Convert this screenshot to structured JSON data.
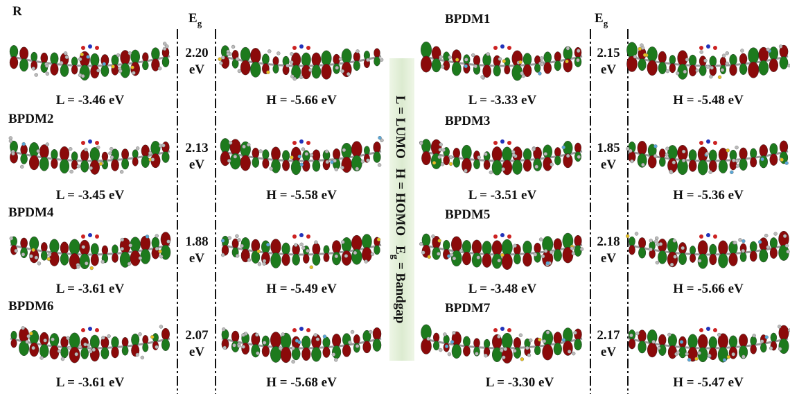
{
  "eg_header": {
    "main": "E",
    "sub": "g"
  },
  "legend": {
    "lumo": "L = LUMO",
    "homo": "H = HOMO",
    "bandgap": "= Bandgap"
  },
  "molecules": [
    {
      "name": "R",
      "lumo": "L = -3.46 eV",
      "homo": "H = -5.66 eV",
      "gap": "2.20",
      "gap_unit": "eV"
    },
    {
      "name": "BPDM1",
      "lumo": "L = -3.33 eV",
      "homo": "H = -5.48 eV",
      "gap": "2.15",
      "gap_unit": "eV"
    },
    {
      "name": "BPDM2",
      "lumo": "L = -3.45 eV",
      "homo": "H = -5.58 eV",
      "gap": "2.13",
      "gap_unit": "eV"
    },
    {
      "name": "BPDM3",
      "lumo": "L = -3.51 eV",
      "homo": "H = -5.36 eV",
      "gap": "1.85",
      "gap_unit": "eV"
    },
    {
      "name": "BPDM4",
      "lumo": "L = -3.61 eV",
      "homo": "H = -5.49 eV",
      "gap": "1.88",
      "gap_unit": "eV"
    },
    {
      "name": "BPDM5",
      "lumo": "L = -3.48 eV",
      "homo": "H = -5.66 eV",
      "gap": "2.18",
      "gap_unit": "eV"
    },
    {
      "name": "BPDM6",
      "lumo": "L = -3.61 eV",
      "homo": "H = -5.68 eV",
      "gap": "2.07",
      "gap_unit": "eV"
    },
    {
      "name": "BPDM7",
      "lumo": "L = -3.30 eV",
      "homo": "H = -5.47 eV",
      "gap": "2.17",
      "gap_unit": "eV"
    }
  ]
}
